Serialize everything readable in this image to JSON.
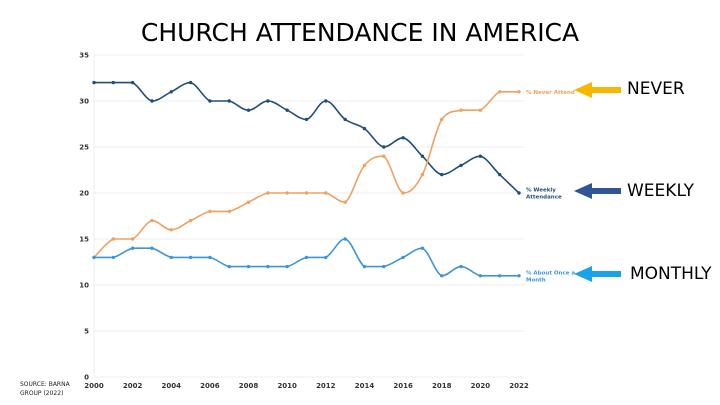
{
  "chart_data": {
    "type": "line",
    "title": "CHURCH ATTENDANCE IN AMERICA",
    "xlabel": "",
    "ylabel": "",
    "x": [
      2000,
      2001,
      2002,
      2003,
      2004,
      2005,
      2006,
      2007,
      2008,
      2009,
      2010,
      2011,
      2012,
      2013,
      2014,
      2015,
      2016,
      2017,
      2018,
      2019,
      2020,
      2021,
      2022
    ],
    "xticks": [
      2000,
      2002,
      2004,
      2006,
      2008,
      2010,
      2012,
      2014,
      2016,
      2018,
      2020,
      2022
    ],
    "yticks": [
      0,
      5,
      10,
      15,
      20,
      25,
      30,
      35
    ],
    "xlim": [
      2000,
      2022
    ],
    "ylim": [
      0,
      35
    ],
    "grid": true,
    "series": [
      {
        "name": "% Weekly Attendance",
        "label_lines": [
          "% Weekly",
          "Attendance"
        ],
        "color": "#1f4e79",
        "values": [
          32,
          32,
          32,
          30,
          31,
          32,
          30,
          30,
          29,
          30,
          29,
          28,
          30,
          28,
          27,
          25,
          26,
          24,
          22,
          23,
          24,
          22,
          20
        ]
      },
      {
        "name": "% Never Attend",
        "label_lines": [
          "% Never Attend"
        ],
        "color": "#f0a060",
        "values": [
          13,
          15,
          15,
          17,
          16,
          17,
          18,
          18,
          19,
          20,
          20,
          20,
          20,
          19,
          23,
          24,
          20,
          22,
          28,
          29,
          29,
          31,
          31
        ]
      },
      {
        "name": "% About Once a Month",
        "label_lines": [
          "% About Once a",
          "Month"
        ],
        "color": "#3d95d9",
        "values": [
          13,
          13,
          14,
          14,
          13,
          13,
          13,
          12,
          12,
          12,
          12,
          13,
          13,
          15,
          12,
          12,
          13,
          14,
          11,
          12,
          11,
          11,
          11
        ]
      }
    ],
    "annotations": [
      {
        "text": "NEVER",
        "series": "% Never Attend",
        "arrow_color": "#f5b800"
      },
      {
        "text": "WEEKLY",
        "series": "% Weekly Attendance",
        "arrow_color": "#2f5597"
      },
      {
        "text": "MONTHLY",
        "series": "% About Once a Month",
        "arrow_color": "#1aa3e8"
      }
    ]
  },
  "header": {
    "title": "CHURCH ATTENDANCE IN AMERICA"
  },
  "footer": {
    "source": "SOURCE: BARNA\nGROUP (2022)"
  }
}
